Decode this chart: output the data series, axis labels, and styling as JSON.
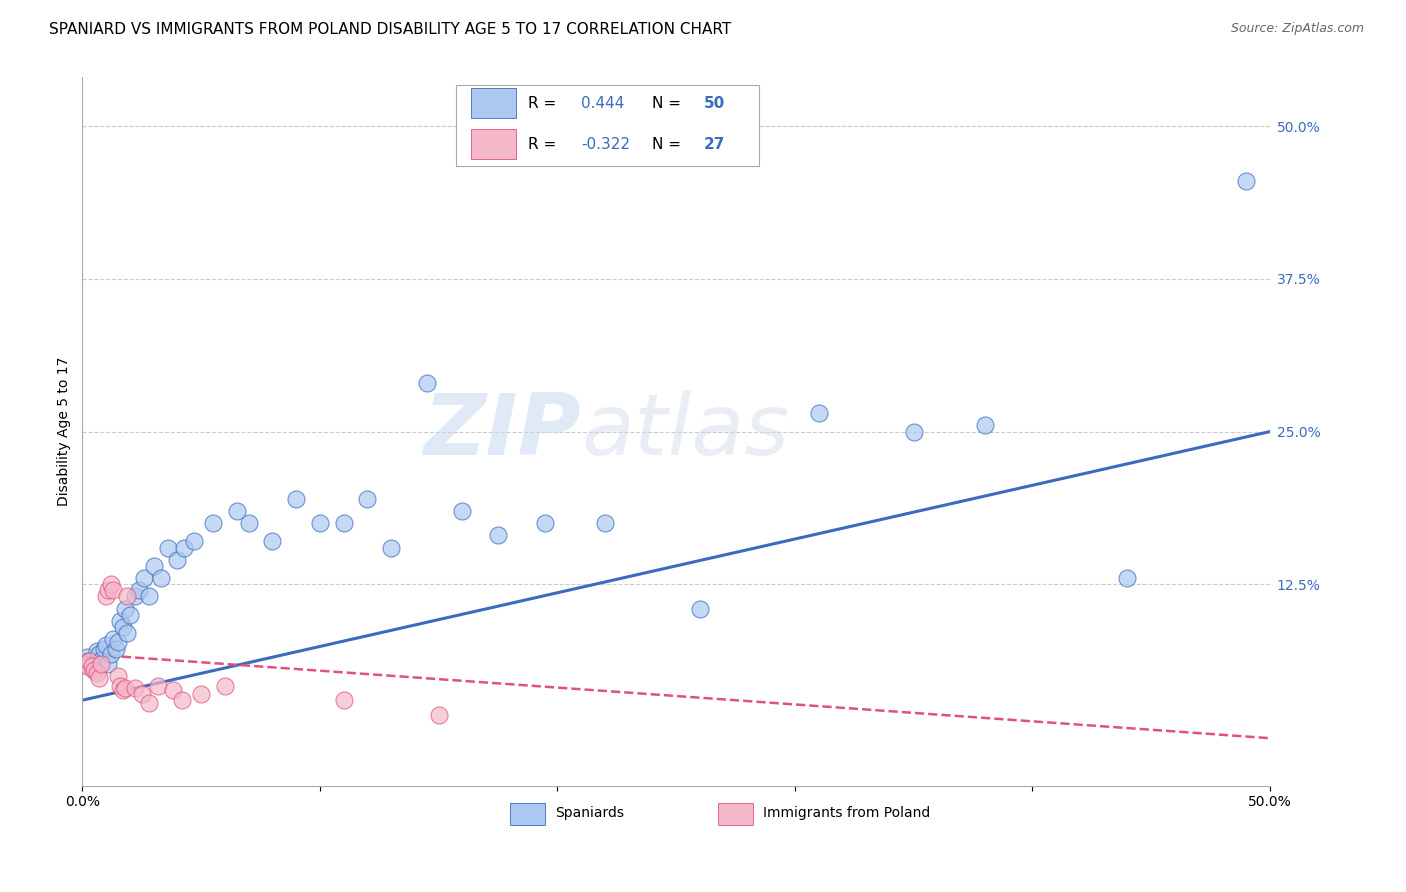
{
  "title": "SPANIARD VS IMMIGRANTS FROM POLAND DISABILITY AGE 5 TO 17 CORRELATION CHART",
  "source": "Source: ZipAtlas.com",
  "ylabel": "Disability Age 5 to 17",
  "xlim": [
    0.0,
    0.5
  ],
  "ylim": [
    -0.04,
    0.54
  ],
  "ytick_labels_right": [
    "50.0%",
    "37.5%",
    "25.0%",
    "12.5%"
  ],
  "ytick_vals_right": [
    0.5,
    0.375,
    0.25,
    0.125
  ],
  "legend_label1": "Spaniards",
  "legend_label2": "Immigrants from Poland",
  "R1": "0.444",
  "N1": "50",
  "R2": "-0.322",
  "N2": "27",
  "color_blue": "#adc8f0",
  "color_pink": "#f5b8c8",
  "line_blue": "#3a6bbf",
  "line_pink": "#e05080",
  "watermark_zip": "ZIP",
  "watermark_atlas": "atlas",
  "title_fontsize": 11,
  "axis_label_fontsize": 10,
  "tick_fontsize": 10,
  "spaniards_x": [
    0.001,
    0.002,
    0.003,
    0.004,
    0.005,
    0.006,
    0.007,
    0.008,
    0.009,
    0.01,
    0.011,
    0.012,
    0.013,
    0.014,
    0.015,
    0.016,
    0.017,
    0.018,
    0.019,
    0.02,
    0.022,
    0.024,
    0.026,
    0.028,
    0.03,
    0.033,
    0.036,
    0.04,
    0.043,
    0.047,
    0.055,
    0.065,
    0.07,
    0.08,
    0.09,
    0.1,
    0.11,
    0.12,
    0.13,
    0.145,
    0.16,
    0.175,
    0.195,
    0.22,
    0.26,
    0.31,
    0.35,
    0.38,
    0.44,
    0.49
  ],
  "spaniards_y": [
    0.06,
    0.065,
    0.062,
    0.058,
    0.055,
    0.07,
    0.068,
    0.063,
    0.072,
    0.075,
    0.06,
    0.068,
    0.08,
    0.072,
    0.078,
    0.095,
    0.09,
    0.105,
    0.085,
    0.1,
    0.115,
    0.12,
    0.13,
    0.115,
    0.14,
    0.13,
    0.155,
    0.145,
    0.155,
    0.16,
    0.175,
    0.185,
    0.175,
    0.16,
    0.195,
    0.175,
    0.175,
    0.195,
    0.155,
    0.29,
    0.185,
    0.165,
    0.175,
    0.175,
    0.105,
    0.265,
    0.25,
    0.255,
    0.13,
    0.455
  ],
  "poland_x": [
    0.001,
    0.002,
    0.003,
    0.004,
    0.005,
    0.006,
    0.007,
    0.008,
    0.01,
    0.011,
    0.012,
    0.013,
    0.015,
    0.016,
    0.017,
    0.018,
    0.019,
    0.022,
    0.025,
    0.028,
    0.032,
    0.038,
    0.042,
    0.05,
    0.06,
    0.11,
    0.15
  ],
  "poland_y": [
    0.06,
    0.058,
    0.062,
    0.058,
    0.055,
    0.052,
    0.048,
    0.06,
    0.115,
    0.12,
    0.125,
    0.12,
    0.05,
    0.042,
    0.038,
    0.04,
    0.115,
    0.04,
    0.035,
    0.028,
    0.042,
    0.038,
    0.03,
    0.035,
    0.042,
    0.03,
    0.018
  ]
}
